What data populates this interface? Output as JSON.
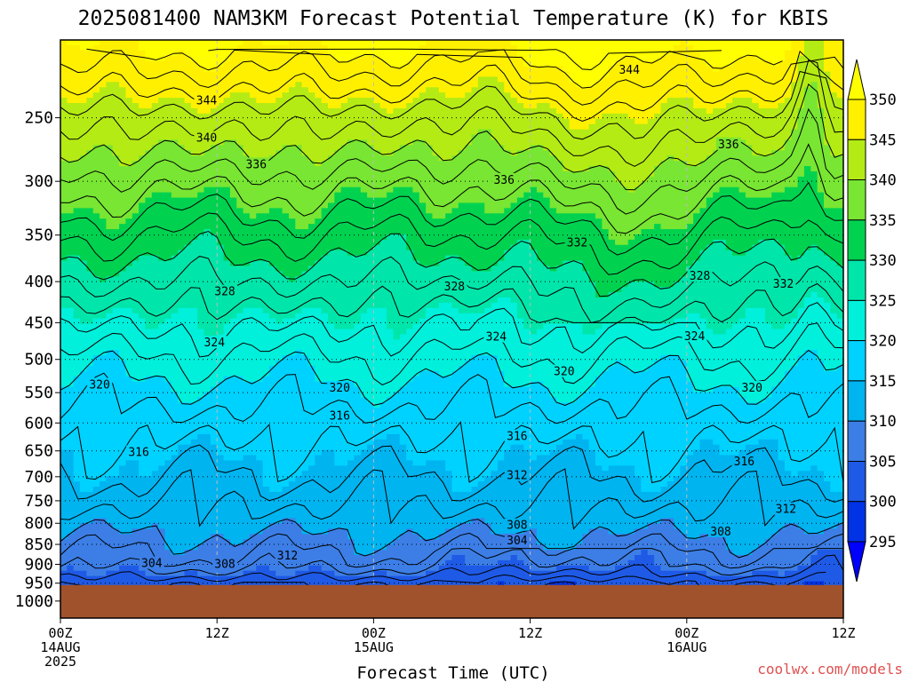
{
  "chart_data": {
    "type": "heatmap",
    "title": "2025081400 NAM3KM Forecast Potential Temperature (K) for KBIS",
    "xlabel": "Forecast Time (UTC)",
    "ylabel": "",
    "credit": "coolwx.com/models",
    "y_axis": {
      "scale": "log-pressure",
      "range": [
        1050,
        200
      ],
      "ticks": [
        250,
        300,
        350,
        400,
        450,
        500,
        550,
        600,
        650,
        700,
        750,
        800,
        850,
        900,
        950,
        1000
      ],
      "tick_labels": [
        "250",
        "300",
        "350",
        "400",
        "450",
        "500",
        "550",
        "600",
        "650",
        "700",
        "750",
        "800",
        "850",
        "900",
        "950",
        "1000"
      ]
    },
    "x_axis": {
      "range_hours": [
        0,
        60
      ],
      "ticks": [
        {
          "hour": 0,
          "line1": "00Z",
          "line2": "14AUG",
          "line3": "2025"
        },
        {
          "hour": 12,
          "line1": "12Z",
          "line2": "",
          "line3": ""
        },
        {
          "hour": 24,
          "line1": "00Z",
          "line2": "15AUG",
          "line3": ""
        },
        {
          "hour": 36,
          "line1": "12Z",
          "line2": "",
          "line3": ""
        },
        {
          "hour": 48,
          "line1": "00Z",
          "line2": "16AUG",
          "line3": ""
        },
        {
          "hour": 60,
          "line1": "12Z",
          "line2": "",
          "line3": ""
        }
      ]
    },
    "grid": true,
    "ground": {
      "pressure_top": 955,
      "color": "#a0522d"
    },
    "colorbar": {
      "placement": "right",
      "levels": [
        295,
        300,
        305,
        310,
        315,
        320,
        325,
        330,
        335,
        340,
        345,
        350
      ],
      "colors": [
        "#0000ff",
        "#0032e6",
        "#1e5ae6",
        "#3c7ee6",
        "#00b4f0",
        "#00d2ff",
        "#00f0dc",
        "#00e6aa",
        "#00d250",
        "#78e632",
        "#b4eb14",
        "#fff000",
        "#ffff00"
      ]
    },
    "field_profile": {
      "pressure": [
        955,
        925,
        900,
        850,
        800,
        750,
        700,
        650,
        600,
        550,
        500,
        450,
        400,
        350,
        300,
        250,
        200
      ],
      "theta": [
        302,
        305,
        307,
        309,
        311,
        312.5,
        314,
        315.5,
        317,
        319,
        321.5,
        324.5,
        328,
        332,
        337,
        343,
        351
      ]
    },
    "contour_labels": [
      {
        "text": "344",
        "hour": 43.6,
        "p": 218
      },
      {
        "text": "344",
        "hour": 11.2,
        "p": 238
      },
      {
        "text": "340",
        "hour": 11.2,
        "p": 265
      },
      {
        "text": "336",
        "hour": 51.2,
        "p": 270
      },
      {
        "text": "336",
        "hour": 15.0,
        "p": 286
      },
      {
        "text": "336",
        "hour": 34.0,
        "p": 299
      },
      {
        "text": "332",
        "hour": 39.6,
        "p": 358
      },
      {
        "text": "328",
        "hour": 49.0,
        "p": 394
      },
      {
        "text": "332",
        "hour": 55.4,
        "p": 403
      },
      {
        "text": "328",
        "hour": 12.6,
        "p": 412
      },
      {
        "text": "328",
        "hour": 30.2,
        "p": 406
      },
      {
        "text": "324",
        "hour": 11.8,
        "p": 477
      },
      {
        "text": "324",
        "hour": 33.4,
        "p": 469
      },
      {
        "text": "324",
        "hour": 48.6,
        "p": 468
      },
      {
        "text": "320",
        "hour": 3.0,
        "p": 538
      },
      {
        "text": "320",
        "hour": 21.4,
        "p": 543
      },
      {
        "text": "320",
        "hour": 38.6,
        "p": 518
      },
      {
        "text": "320",
        "hour": 53.0,
        "p": 543
      },
      {
        "text": "316",
        "hour": 21.4,
        "p": 588
      },
      {
        "text": "316",
        "hour": 35.0,
        "p": 624
      },
      {
        "text": "316",
        "hour": 6.0,
        "p": 653
      },
      {
        "text": "316",
        "hour": 52.4,
        "p": 671
      },
      {
        "text": "312",
        "hour": 35.0,
        "p": 698
      },
      {
        "text": "312",
        "hour": 55.6,
        "p": 769
      },
      {
        "text": "308",
        "hour": 35.0,
        "p": 805
      },
      {
        "text": "308",
        "hour": 50.6,
        "p": 820
      },
      {
        "text": "304",
        "hour": 35.0,
        "p": 841
      },
      {
        "text": "312",
        "hour": 17.4,
        "p": 879
      },
      {
        "text": "304",
        "hour": 7.0,
        "p": 898
      },
      {
        "text": "308",
        "hour": 12.6,
        "p": 900
      }
    ]
  }
}
